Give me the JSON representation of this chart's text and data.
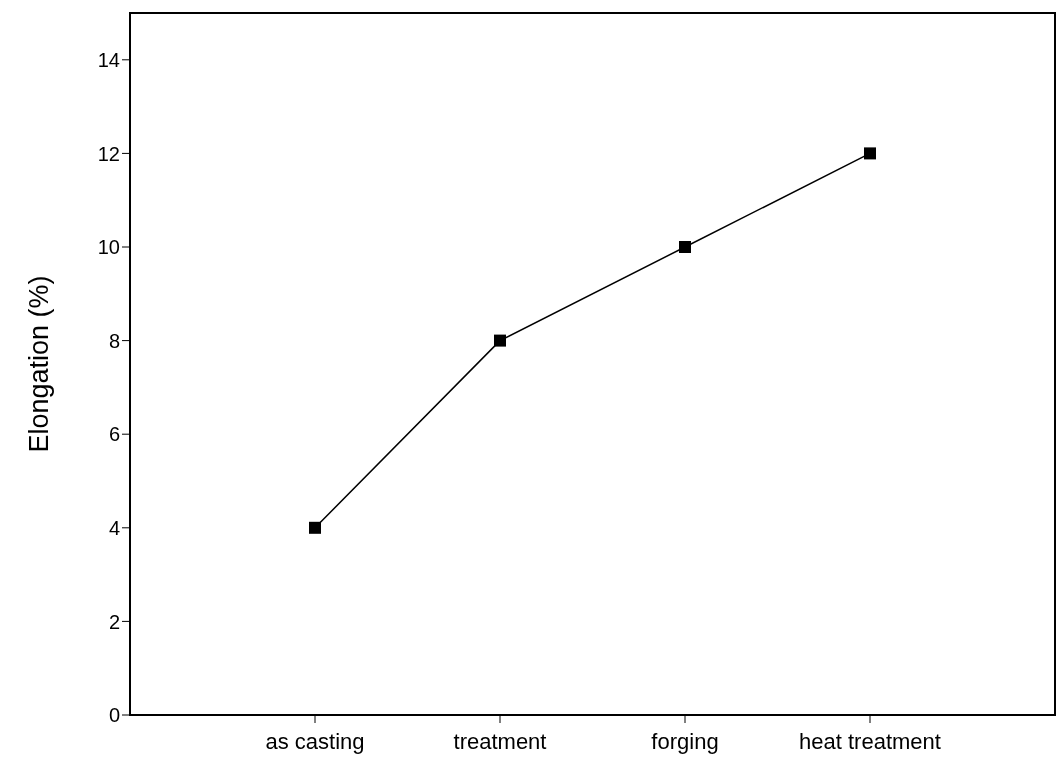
{
  "chart_data": {
    "type": "line",
    "ylabel": "Elongation (%)",
    "categories": [
      "as casting",
      "treatment",
      "forging",
      "heat treatment"
    ],
    "series": [
      {
        "color": "#000000",
        "values": [
          4,
          8,
          10,
          12
        ]
      }
    ],
    "ylim": [
      0,
      15
    ],
    "yticks": [
      0,
      2,
      4,
      6,
      8,
      10,
      12,
      14
    ],
    "marker": "square",
    "line_style": "solid"
  }
}
